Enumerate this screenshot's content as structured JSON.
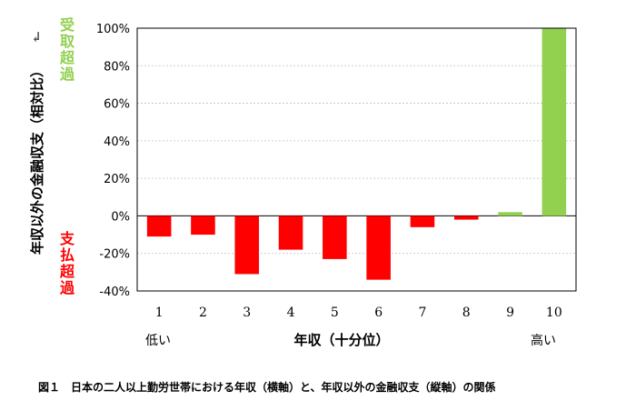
{
  "chart_data": {
    "type": "bar",
    "categories": [
      "1",
      "2",
      "3",
      "4",
      "5",
      "6",
      "7",
      "8",
      "9",
      "10"
    ],
    "values": [
      -11,
      -10,
      -31,
      -18,
      -23,
      -34,
      -6,
      -2,
      2,
      100
    ],
    "ylabel": "年収以外の金融収支（相対比）",
    "xlabel": "年収（十分位）",
    "ylim": [
      -40,
      100
    ],
    "yticks": [
      "-40%",
      "-20%",
      "0%",
      "20%",
      "40%",
      "60%",
      "80%",
      "100%"
    ],
    "ytick_values": [
      -40,
      -20,
      0,
      20,
      40,
      60,
      80,
      100
    ],
    "x_low_label": "低い",
    "x_high_label": "高い",
    "positive_note": "受取超過",
    "negative_note": "支払超過",
    "grid": true,
    "colors": {
      "positive": "#92d050",
      "negative": "#ff0000"
    }
  },
  "caption": "図１　日本の二人以上勤労世帯における年収（横軸）と、年収以外の金融収支（縦軸）の関係"
}
